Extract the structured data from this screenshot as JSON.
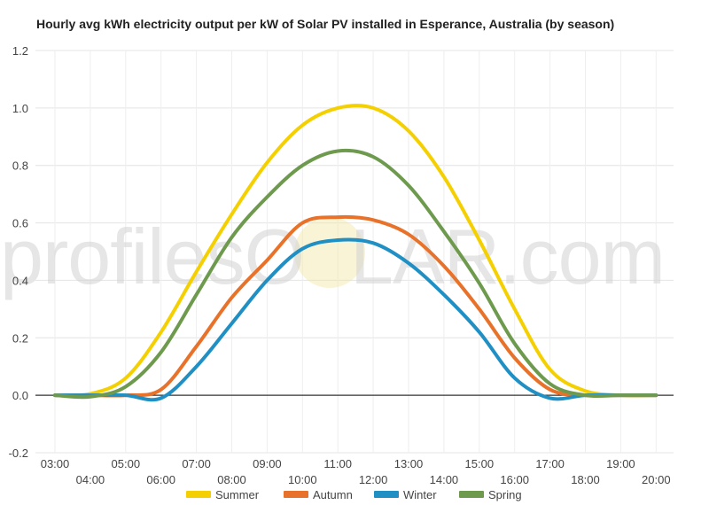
{
  "chart_data": {
    "type": "line",
    "title": "Hourly avg kWh electricity output per kW of Solar PV installed in Esperance, Australia (by season)",
    "xlabel": "",
    "ylabel": "",
    "x": [
      "03:00",
      "04:00",
      "05:00",
      "06:00",
      "07:00",
      "08:00",
      "09:00",
      "10:00",
      "11:00",
      "12:00",
      "13:00",
      "14:00",
      "15:00",
      "16:00",
      "17:00",
      "18:00",
      "19:00",
      "20:00"
    ],
    "ylim": [
      -0.2,
      1.2
    ],
    "yticks": [
      "-0.2",
      "0.0",
      "0.2",
      "0.4",
      "0.6",
      "0.8",
      "1.0",
      "1.2"
    ],
    "grid": true,
    "legend": "bottom",
    "series": [
      {
        "name": "Summer",
        "color": "#f5d000",
        "values": [
          0,
          0.005,
          0.06,
          0.22,
          0.43,
          0.63,
          0.81,
          0.94,
          1.0,
          1.0,
          0.92,
          0.76,
          0.54,
          0.3,
          0.09,
          0.015,
          0,
          0
        ]
      },
      {
        "name": "Autumn",
        "color": "#e8722a",
        "values": [
          0,
          0,
          0,
          0.02,
          0.17,
          0.34,
          0.47,
          0.6,
          0.62,
          0.61,
          0.56,
          0.45,
          0.3,
          0.13,
          0.02,
          0,
          0,
          0
        ]
      },
      {
        "name": "Winter",
        "color": "#1f8fc4",
        "values": [
          0,
          0,
          0,
          -0.01,
          0.1,
          0.25,
          0.4,
          0.51,
          0.54,
          0.53,
          0.46,
          0.35,
          0.22,
          0.06,
          -0.01,
          0,
          0,
          0
        ]
      },
      {
        "name": "Spring",
        "color": "#6e9a4e",
        "values": [
          0,
          -0.005,
          0.03,
          0.15,
          0.35,
          0.55,
          0.69,
          0.8,
          0.85,
          0.83,
          0.73,
          0.57,
          0.39,
          0.18,
          0.04,
          0,
          0,
          0
        ]
      }
    ]
  },
  "watermark": {
    "left": "profilesO",
    "right": "LAR.com"
  }
}
